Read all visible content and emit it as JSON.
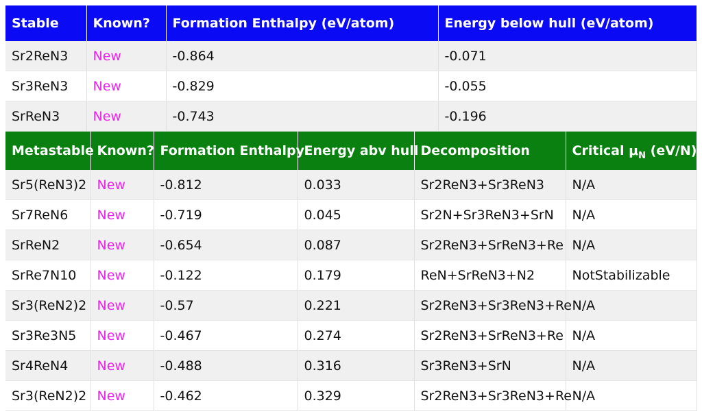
{
  "stable": {
    "headers": [
      "Stable",
      "Known?",
      "Formation Enthalpy (eV/atom)",
      "Energy below hull (eV/atom)"
    ],
    "rows": [
      {
        "compound": "Sr2ReN3",
        "known": "New",
        "enthalpy": "-0.864",
        "hull": "-0.071"
      },
      {
        "compound": "Sr3ReN3",
        "known": "New",
        "enthalpy": "-0.829",
        "hull": "-0.055"
      },
      {
        "compound": "SrReN3",
        "known": "New",
        "enthalpy": "-0.743",
        "hull": "-0.196"
      }
    ]
  },
  "metastable": {
    "headers": {
      "compound": "Metastable",
      "known": "Known?",
      "enthalpy": "Formation Enthalpy",
      "hull": "Energy abv hull",
      "decomposition": "Decomposition",
      "critical_prefix": "Critical μ",
      "critical_sub": "N",
      "critical_suffix": " (eV/N)"
    },
    "rows": [
      {
        "compound": "Sr5(ReN3)2",
        "known": "New",
        "enthalpy": "-0.812",
        "hull": "0.033",
        "decomposition": "Sr2ReN3+Sr3ReN3",
        "critical": "N/A"
      },
      {
        "compound": "Sr7ReN6",
        "known": "New",
        "enthalpy": "-0.719",
        "hull": "0.045",
        "decomposition": "Sr2N+Sr3ReN3+SrN",
        "critical": "N/A"
      },
      {
        "compound": "SrReN2",
        "known": "New",
        "enthalpy": "-0.654",
        "hull": "0.087",
        "decomposition": "Sr2ReN3+SrReN3+Re",
        "critical": "N/A"
      },
      {
        "compound": "SrRe7N10",
        "known": "New",
        "enthalpy": "-0.122",
        "hull": "0.179",
        "decomposition": "ReN+SrReN3+N2",
        "critical": "NotStabilizable"
      },
      {
        "compound": "Sr3(ReN2)2",
        "known": "New",
        "enthalpy": "-0.57",
        "hull": "0.221",
        "decomposition": "Sr2ReN3+Sr3ReN3+Re",
        "critical": "N/A"
      },
      {
        "compound": "Sr3Re3N5",
        "known": "New",
        "enthalpy": "-0.467",
        "hull": "0.274",
        "decomposition": "Sr2ReN3+SrReN3+Re",
        "critical": "N/A"
      },
      {
        "compound": "Sr4ReN4",
        "known": "New",
        "enthalpy": "-0.488",
        "hull": "0.316",
        "decomposition": "Sr3ReN3+SrN",
        "critical": "N/A"
      },
      {
        "compound": "Sr3(ReN2)2",
        "known": "New",
        "enthalpy": "-0.462",
        "hull": "0.329",
        "decomposition": "Sr2ReN3+Sr3ReN3+Re",
        "critical": "N/A"
      }
    ]
  },
  "colors": {
    "stable_header": "#0a0af5",
    "metastable_header": "#0a8010",
    "known_text": "#ee22ee",
    "row_stripe": "#f0f0f0"
  }
}
